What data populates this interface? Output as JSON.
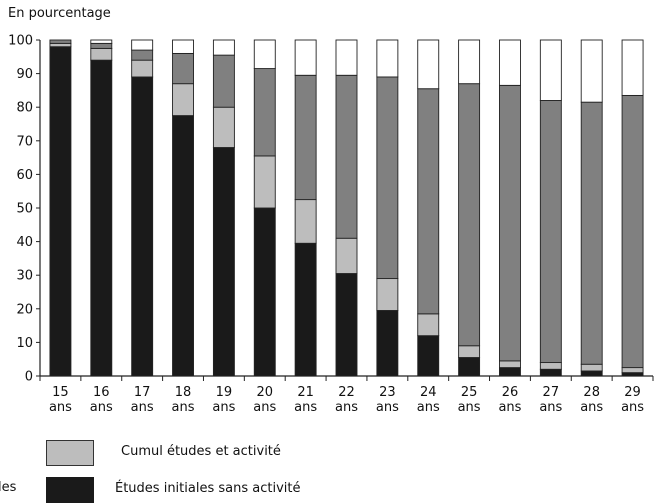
{
  "chart_data": {
    "type": "bar",
    "stacked": true,
    "ylabel": "En pourcentage",
    "ylim": [
      0,
      100
    ],
    "yticks": [
      0,
      10,
      20,
      30,
      40,
      50,
      60,
      70,
      80,
      90,
      100
    ],
    "categories": [
      "15 ans",
      "16 ans",
      "17 ans",
      "18 ans",
      "19 ans",
      "20 ans",
      "21 ans",
      "22 ans",
      "23 ans",
      "24 ans",
      "25 ans",
      "26 ans",
      "27 ans",
      "28 ans",
      "29 ans"
    ],
    "category_lines": [
      [
        "15",
        "ans"
      ],
      [
        "16",
        "ans"
      ],
      [
        "17",
        "ans"
      ],
      [
        "18",
        "ans"
      ],
      [
        "19",
        "ans"
      ],
      [
        "20",
        "ans"
      ],
      [
        "21",
        "ans"
      ],
      [
        "22",
        "ans"
      ],
      [
        "23",
        "ans"
      ],
      [
        "24",
        "ans"
      ],
      [
        "25",
        "ans"
      ],
      [
        "26",
        "ans"
      ],
      [
        "27",
        "ans"
      ],
      [
        "28",
        "ans"
      ],
      [
        "29",
        "ans"
      ]
    ],
    "series": [
      {
        "name": "Études initiales sans activité",
        "color": "#1a1a1a",
        "values": [
          98,
          94,
          89,
          77.5,
          68,
          50,
          39.5,
          30.5,
          19.5,
          12,
          5.5,
          2.5,
          2,
          1.5,
          1
        ]
      },
      {
        "name": "Cumul études et activité",
        "color": "#bdbdbd",
        "values": [
          1,
          3.5,
          5,
          9.5,
          12,
          15.5,
          13,
          10.5,
          9.5,
          6.5,
          3.5,
          2,
          2,
          2,
          1.5
        ]
      },
      {
        "values": [
          1,
          1.5,
          3,
          9,
          15.5,
          26,
          37,
          48.5,
          60,
          67,
          78,
          82,
          78,
          78,
          81
        ],
        "color": "#808080"
      },
      {
        "values": [
          0,
          1,
          3,
          4,
          4.5,
          8.5,
          10.5,
          10.5,
          11,
          14.5,
          13,
          13.5,
          18,
          18.5,
          16.5
        ],
        "color": "#ffffff"
      }
    ],
    "grid": false,
    "legend_placement": "bottom-left"
  },
  "legend": {
    "cumul_label": "Cumul études et activité",
    "initiales_label": "Études initiales sans activité",
    "cut_label": "les"
  }
}
